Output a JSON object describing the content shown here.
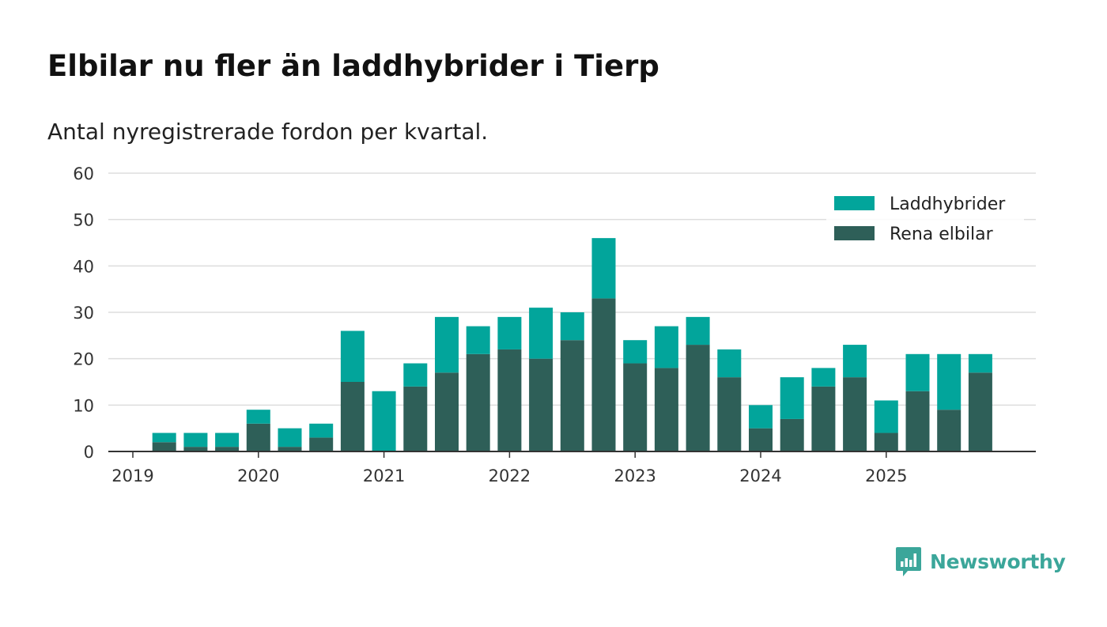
{
  "header": {
    "title": "Elbilar nu fler än laddhybrider i Tierp",
    "subtitle": "Antal nyregistrerade fordon per kvartal."
  },
  "logo": {
    "text": "Newsworthy",
    "icon": "newsworthy-logo-icon"
  },
  "colors": {
    "laddhybrider": "#02a59b",
    "rena_elbilar": "#2e5f58",
    "gridline": "#dddddd",
    "axis": "#333333",
    "logo": "#3ba69a"
  },
  "chart_data": {
    "type": "bar",
    "stacked": true,
    "title": "Elbilar nu fler än laddhybrider i Tierp",
    "subtitle": "Antal nyregistrerade fordon per kvartal.",
    "xlabel": "",
    "ylabel": "",
    "ylim": [
      0,
      60
    ],
    "yticks": [
      0,
      10,
      20,
      30,
      40,
      50,
      60
    ],
    "xticks": [
      "2019",
      "2020",
      "2021",
      "2022",
      "2023",
      "2024",
      "2025"
    ],
    "grid": true,
    "legend_position": "top-right",
    "categories": [
      "2019 Q1",
      "2019 Q2",
      "2019 Q3",
      "2019 Q4",
      "2020 Q1",
      "2020 Q2",
      "2020 Q3",
      "2020 Q4",
      "2021 Q1",
      "2021 Q2",
      "2021 Q3",
      "2021 Q4",
      "2022 Q1",
      "2022 Q2",
      "2022 Q3",
      "2022 Q4",
      "2023 Q1",
      "2023 Q2",
      "2023 Q3",
      "2023 Q4",
      "2024 Q1",
      "2024 Q2",
      "2024 Q3",
      "2024 Q4",
      "2025 Q1",
      "2025 Q2",
      "2025 Q3",
      "2025 Q4"
    ],
    "series": [
      {
        "name": "Rena elbilar",
        "values": [
          0,
          2,
          1,
          1,
          6,
          1,
          3,
          15,
          0,
          14,
          17,
          21,
          22,
          20,
          24,
          33,
          19,
          18,
          23,
          16,
          5,
          7,
          14,
          16,
          4,
          13,
          9,
          17
        ]
      },
      {
        "name": "Laddhybrider",
        "values": [
          0,
          2,
          3,
          3,
          3,
          4,
          3,
          11,
          13,
          5,
          12,
          6,
          7,
          11,
          6,
          13,
          5,
          9,
          6,
          6,
          5,
          9,
          4,
          7,
          7,
          8,
          12,
          4
        ]
      }
    ],
    "legend": [
      "Laddhybrider",
      "Rena elbilar"
    ]
  }
}
